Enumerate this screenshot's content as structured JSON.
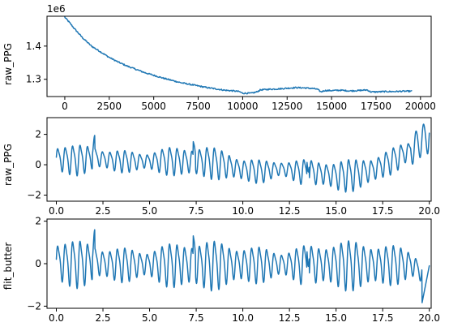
{
  "chart_data": [
    {
      "type": "line",
      "title": "",
      "xlabel": "",
      "ylabel": "raw_PPG",
      "offset_text": "1e6",
      "xlim": [
        -1000,
        20600
      ],
      "ylim": [
        1.248,
        1.49
      ],
      "xticks": [
        0,
        2500,
        5000,
        7500,
        10000,
        12500,
        15000,
        17500,
        20000
      ],
      "xtick_labels": [
        "0",
        "2500",
        "5000",
        "7500",
        "10000",
        "12500",
        "15000",
        "17500",
        "20000"
      ],
      "yticks": [
        1.3,
        1.4
      ],
      "ytick_labels": [
        "1.3",
        "1.4"
      ],
      "grid": false,
      "color": "#1f77b4",
      "series": [
        {
          "x": [
            0,
            250,
            500,
            750,
            1000,
            1500,
            2000,
            2500,
            3000,
            3500,
            4000,
            4500,
            5000,
            5500,
            6000,
            6500,
            7000,
            7500,
            8000,
            8500,
            9000,
            9500,
            9800,
            10000,
            10500,
            10800,
            11000,
            11500,
            12000,
            12500,
            13000,
            13500,
            14000,
            14200,
            14400,
            14600,
            15000,
            15500,
            16000,
            16500,
            17000,
            17200,
            17500,
            18000,
            18500,
            19000,
            19500
          ],
          "values": [
            1.487,
            1.472,
            1.455,
            1.44,
            1.425,
            1.4,
            1.383,
            1.366,
            1.352,
            1.34,
            1.33,
            1.32,
            1.312,
            1.304,
            1.297,
            1.29,
            1.285,
            1.28,
            1.275,
            1.271,
            1.267,
            1.265,
            1.263,
            1.258,
            1.258,
            1.262,
            1.268,
            1.27,
            1.271,
            1.273,
            1.275,
            1.274,
            1.272,
            1.27,
            1.262,
            1.266,
            1.266,
            1.267,
            1.265,
            1.266,
            1.268,
            1.262,
            1.262,
            1.263,
            1.263,
            1.264,
            1.264
          ]
        }
      ]
    },
    {
      "type": "line",
      "title": "",
      "xlabel": "",
      "ylabel": "raw_PPG",
      "xlim": [
        -0.5,
        20.1
      ],
      "ylim": [
        -2.4,
        3.1
      ],
      "xticks": [
        0,
        2.5,
        5,
        7.5,
        10,
        12.5,
        15,
        17.5,
        20
      ],
      "xtick_labels": [
        "0.0",
        "2.5",
        "5.0",
        "7.5",
        "10.0",
        "12.5",
        "15.0",
        "17.5",
        "20.0"
      ],
      "yticks": [
        -2,
        0,
        2
      ],
      "ytick_labels": [
        "−2",
        "0",
        "2"
      ],
      "grid": false,
      "color": "#1f77b4",
      "oscillation": {
        "period": 0.4,
        "amplitude": 0.9,
        "start": 0.0,
        "end": 20.0
      },
      "series": [
        {
          "x": [
            0,
            1,
            2,
            3,
            4,
            5,
            6,
            7,
            8,
            9,
            10,
            11,
            12,
            13,
            14,
            15,
            16,
            17,
            18,
            19,
            20
          ],
          "values": [
            0.4,
            0.35,
            0.5,
            0.3,
            0.25,
            0.25,
            0.3,
            0.25,
            0.25,
            0.05,
            -0.3,
            -0.4,
            -0.25,
            -0.4,
            -0.5,
            -0.7,
            -0.6,
            -0.3,
            0.3,
            1.0,
            2.0
          ]
        }
      ]
    },
    {
      "type": "line",
      "title": "",
      "xlabel": "",
      "ylabel": "flit_butter",
      "xlim": [
        -0.5,
        20.1
      ],
      "ylim": [
        -2.1,
        2.1
      ],
      "xticks": [
        0,
        2.5,
        5,
        7.5,
        10,
        12.5,
        15,
        17.5,
        20
      ],
      "xtick_labels": [
        "0.0",
        "2.5",
        "5.0",
        "7.5",
        "10.0",
        "12.5",
        "15.0",
        "17.5",
        "20.0"
      ],
      "yticks": [
        -2,
        0,
        2
      ],
      "ytick_labels": [
        "−2",
        "0",
        "2"
      ],
      "grid": false,
      "color": "#1f77b4",
      "oscillation": {
        "period": 0.4,
        "amplitude": 1.0,
        "start": 0.0,
        "end": 20.0
      },
      "series": [
        {
          "x": [
            0,
            1,
            2,
            3,
            4,
            5,
            6,
            7,
            8,
            9,
            10,
            11,
            12,
            13,
            14,
            15,
            16,
            17,
            18,
            19,
            20
          ],
          "values": [
            0.1,
            0.05,
            0.1,
            0.0,
            0.0,
            0.0,
            0.0,
            0.0,
            0.0,
            0.0,
            0.0,
            0.0,
            0.0,
            0.0,
            0.0,
            0.0,
            0.0,
            0.0,
            0.0,
            0.0,
            -0.6
          ]
        }
      ]
    }
  ]
}
